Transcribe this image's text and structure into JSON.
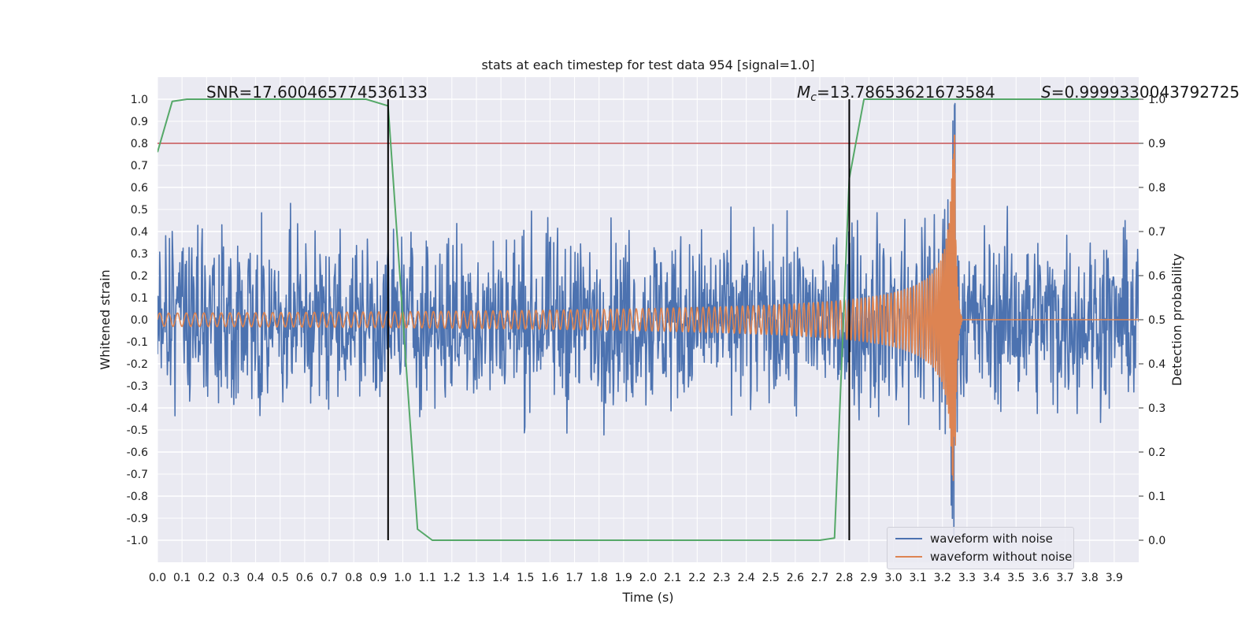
{
  "chart_data": {
    "type": "line",
    "title": "stats at each timestep for test data 954 [signal=1.0]",
    "xlabel": "Time (s)",
    "ylabel": "Whitened strain",
    "y2label": "Detection probability",
    "xlim": [
      0.0,
      4.0
    ],
    "ylim": [
      -1.1,
      1.1
    ],
    "y2lim": [
      -0.05,
      1.05
    ],
    "xticks": [
      "0.0",
      "0.1",
      "0.2",
      "0.3",
      "0.4",
      "0.5",
      "0.6",
      "0.7",
      "0.8",
      "0.9",
      "1.0",
      "1.1",
      "1.2",
      "1.3",
      "1.4",
      "1.5",
      "1.6",
      "1.7",
      "1.8",
      "1.9",
      "2.0",
      "2.1",
      "2.2",
      "2.3",
      "2.4",
      "2.5",
      "2.6",
      "2.7",
      "2.8",
      "2.9",
      "3.0",
      "3.1",
      "3.2",
      "3.3",
      "3.4",
      "3.5",
      "3.6",
      "3.7",
      "3.8",
      "3.9"
    ],
    "yticks": [
      "1.0",
      "0.9",
      "0.8",
      "0.7",
      "0.6",
      "0.5",
      "0.4",
      "0.3",
      "0.2",
      "0.1",
      "0.0",
      "-0.1",
      "-0.2",
      "-0.3",
      "-0.4",
      "-0.5",
      "-0.6",
      "-0.7",
      "-0.8",
      "-0.9",
      "-1.0"
    ],
    "y2ticks": [
      "1.0",
      "0.9",
      "0.8",
      "0.7",
      "0.6",
      "0.5",
      "0.4",
      "0.3",
      "0.2",
      "0.1",
      "0.0"
    ],
    "grid": true,
    "legend_position": "bottom-right",
    "annotations": {
      "snr": "SNR=17.600465774536133",
      "mc_symbol": "M",
      "mc_sub": "c",
      "mc_value": "=13.78653621673584",
      "s_symbol": "S",
      "s_value": "=0.9999330043792725"
    },
    "series": [
      {
        "name": "waveform with noise",
        "color": "#4c72b0",
        "noise_amplitude": 0.3,
        "peak_range": [
          -0.98,
          0.99
        ]
      },
      {
        "name": "waveform without noise",
        "color": "#dd8452",
        "chirp": {
          "start_amplitude": 0.03,
          "peak_amplitude": 0.85,
          "min_amplitude": -0.75,
          "merger_time": 3.25,
          "ringdown_end": 3.28
        }
      },
      {
        "color": "#55a868",
        "axis": "y2",
        "x": [
          0.0,
          0.06,
          0.12,
          0.5,
          0.85,
          0.94,
          1.06,
          1.12,
          1.2,
          2.0,
          2.7,
          2.76,
          2.82,
          2.88,
          3.0,
          4.0
        ],
        "y": [
          0.88,
          0.995,
          1.0,
          1.0,
          1.0,
          0.985,
          0.025,
          0.0,
          0.0,
          0.0,
          0.0,
          0.005,
          0.82,
          1.0,
          1.0,
          1.0
        ]
      }
    ],
    "threshold_line": {
      "y2": 0.9,
      "color": "#c44e52"
    },
    "vertical_lines": [
      {
        "x": 0.94,
        "color": "#000000"
      },
      {
        "x": 2.82,
        "color": "#000000"
      }
    ]
  }
}
